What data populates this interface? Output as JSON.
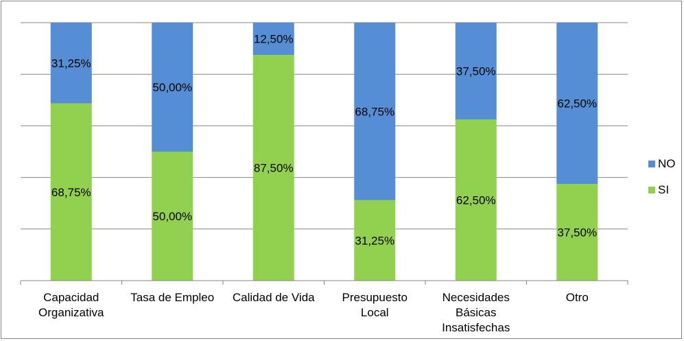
{
  "chart_data": {
    "type": "bar",
    "stacked": true,
    "percent": true,
    "categories": [
      "Capacidad Organizativa",
      "Tasa de Empleo",
      "Calidad de Vida",
      "Presupuesto Local",
      "Necesidades Básicas Insatisfechas",
      "Otro"
    ],
    "category_lines": [
      [
        "Capacidad",
        "Organizativa"
      ],
      [
        "Tasa de Empleo"
      ],
      [
        "Calidad de Vida"
      ],
      [
        "Presupuesto",
        "Local"
      ],
      [
        "Necesidades",
        "Básicas",
        "Insatisfechas"
      ],
      [
        "Otro"
      ]
    ],
    "series": [
      {
        "name": "SI",
        "color": "#92d050",
        "values": [
          68.75,
          50.0,
          87.5,
          31.25,
          62.5,
          37.5
        ],
        "labels": [
          "68,75%",
          "50,00%",
          "87,50%",
          "31,25%",
          "62,50%",
          "37,50%"
        ]
      },
      {
        "name": "NO",
        "color": "#558ed5",
        "values": [
          31.25,
          50.0,
          12.5,
          68.75,
          37.5,
          62.5
        ],
        "labels": [
          "31,25%",
          "50,00%",
          "12,50%",
          "68,75%",
          "37,50%",
          "62,50%"
        ]
      }
    ],
    "legend_order": [
      "NO",
      "SI"
    ],
    "ylim": [
      0,
      100
    ],
    "gridlines": true,
    "legend_position": "right"
  }
}
